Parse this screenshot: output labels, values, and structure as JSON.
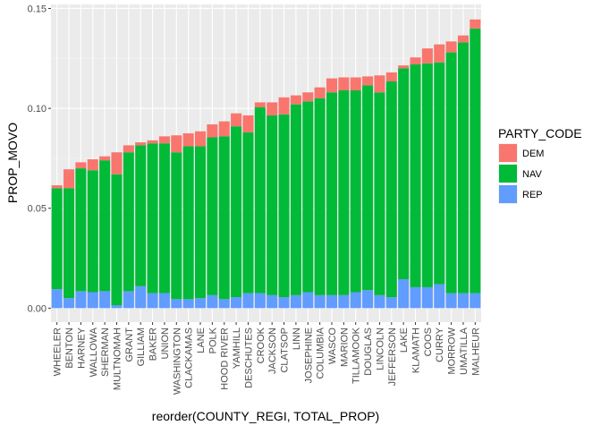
{
  "chart_data": {
    "type": "bar",
    "stacked": true,
    "xlabel": "reorder(COUNTY_REGI, TOTAL_PROP)",
    "ylabel": "PROP_MOVO",
    "ylim": [
      -0.007,
      0.152
    ],
    "yticks": [
      0.0,
      0.05,
      0.1,
      0.15
    ],
    "ytick_labels": [
      "0.00",
      "0.05",
      "0.10",
      "0.15"
    ],
    "grid": true,
    "legend": {
      "title": "PARTY_CODE",
      "placement": "right"
    },
    "categories": [
      "WHEELER",
      "BENTON",
      "HARNEY",
      "WALLOWA",
      "SHERMAN",
      "MULTNOMAH",
      "GRANT",
      "GILLIAM",
      "BAKER",
      "UNION",
      "WASHINGTON",
      "CLACKAMAS",
      "LANE",
      "POLK",
      "HOOD RIVER",
      "YAMHILL",
      "DESCHUTES",
      "CROOK",
      "JACKSON",
      "CLATSOP",
      "LINN",
      "JOSEPHINE",
      "COLUMBIA",
      "WASCO",
      "MARION",
      "TILLAMOOK",
      "DOUGLAS",
      "LINCOLN",
      "JEFFERSON",
      "LAKE",
      "KLAMATH",
      "COOS",
      "CURRY",
      "MORROW",
      "UMATILLA",
      "MALHEUR"
    ],
    "series": [
      {
        "name": "REP",
        "color": "#619CFF",
        "values": [
          0.0095,
          0.005,
          0.0085,
          0.008,
          0.0085,
          0.0015,
          0.0085,
          0.011,
          0.0075,
          0.0075,
          0.0045,
          0.0045,
          0.005,
          0.0065,
          0.0045,
          0.0055,
          0.0075,
          0.0075,
          0.0065,
          0.0055,
          0.0065,
          0.008,
          0.0065,
          0.0065,
          0.0065,
          0.008,
          0.009,
          0.0065,
          0.0055,
          0.0145,
          0.0105,
          0.0105,
          0.012,
          0.0075,
          0.0075,
          0.0075
        ]
      },
      {
        "name": "NAV",
        "color": "#00BA38",
        "values": [
          0.0505,
          0.055,
          0.0615,
          0.061,
          0.0655,
          0.0655,
          0.0695,
          0.0705,
          0.075,
          0.075,
          0.0735,
          0.0765,
          0.076,
          0.079,
          0.0815,
          0.0855,
          0.0805,
          0.093,
          0.09,
          0.0915,
          0.0955,
          0.0955,
          0.0985,
          0.1015,
          0.1025,
          0.101,
          0.1025,
          0.1015,
          0.108,
          0.1055,
          0.1115,
          0.112,
          0.111,
          0.1205,
          0.1255,
          0.1325
        ]
      },
      {
        "name": "DEM",
        "color": "#F8766D",
        "values": [
          0.0015,
          0.0095,
          0.003,
          0.0055,
          0.002,
          0.011,
          0.0035,
          0.0015,
          0.0015,
          0.0035,
          0.0085,
          0.0065,
          0.0075,
          0.0065,
          0.0075,
          0.0065,
          0.0085,
          0.0025,
          0.0065,
          0.0085,
          0.0045,
          0.0045,
          0.0055,
          0.007,
          0.0065,
          0.0065,
          0.0045,
          0.0085,
          0.0045,
          0.0015,
          0.0035,
          0.0075,
          0.009,
          0.0055,
          0.0035,
          0.0045
        ]
      }
    ]
  }
}
